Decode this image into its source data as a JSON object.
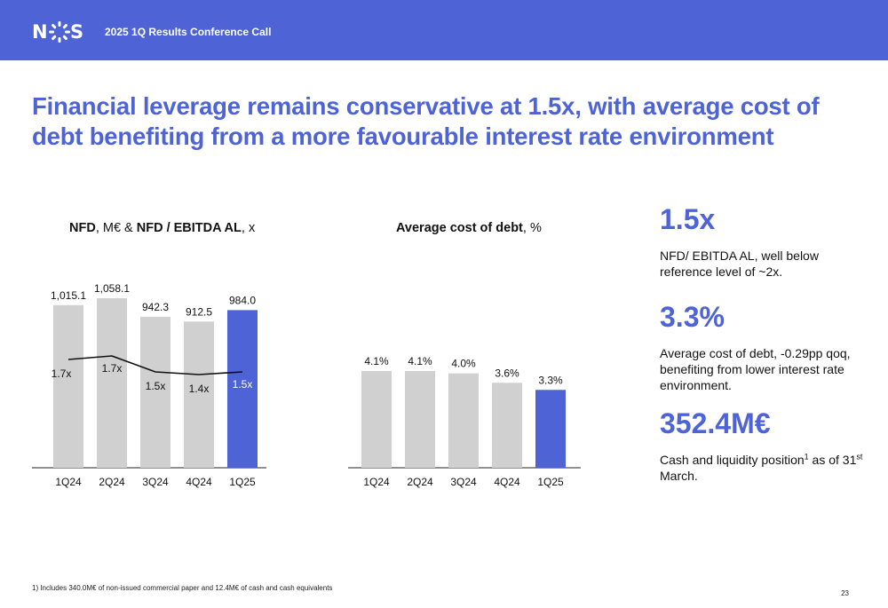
{
  "header": {
    "logo_left": "N",
    "logo_right": "S",
    "deck_title": "2025 1Q Results Conference Call"
  },
  "headline": "Financial leverage remains conservative at 1.5x, with average cost of debt benefiting from a more favourable interest rate environment",
  "colors": {
    "brand": "#4d63d6",
    "bar_gray": "#d0d0d0",
    "line": "#111111"
  },
  "chart_data": [
    {
      "type": "bar",
      "title_bold_1": "NFD",
      "title_unit_1": ", M€ & ",
      "title_bold_2": "NFD / EBITDA AL",
      "title_unit_2": ", x",
      "categories": [
        "1Q24",
        "2Q24",
        "3Q24",
        "4Q24",
        "1Q25"
      ],
      "series": [
        {
          "values": [
            1015.1,
            1058.1,
            942.3,
            912.5,
            984.0
          ],
          "labels": [
            "1,015.1",
            "1,058.1",
            "942.3",
            "912.5",
            "984.0"
          ]
        },
        {
          "type": "line",
          "values": [
            1.7,
            1.7,
            1.5,
            1.4,
            1.5
          ],
          "labels": [
            "1.7x",
            "1.7x",
            "1.5x",
            "1.4x",
            "1.5x"
          ]
        }
      ],
      "highlight_index": 4
    },
    {
      "type": "bar",
      "title_bold": "Average cost of debt",
      "title_unit": ", %",
      "categories": [
        "1Q24",
        "2Q24",
        "3Q24",
        "4Q24",
        "1Q25"
      ],
      "values": [
        4.1,
        4.1,
        4.0,
        3.6,
        3.3
      ],
      "labels": [
        "4.1%",
        "4.1%",
        "4.0%",
        "3.6%",
        "3.3%"
      ],
      "highlight_index": 4
    }
  ],
  "kpis": [
    {
      "value": "1.5x",
      "desc": "NFD/ EBITDA AL, well below reference level of ~2x."
    },
    {
      "value": "3.3%",
      "desc": "Average cost of debt, -0.29pp qoq, benefiting from lower interest rate environment."
    },
    {
      "value": "352.4M€",
      "desc_before": "Cash and liquidity position",
      "footnote_ref": "1",
      "desc_mid": " as of 31",
      "desc_sup": "st",
      "desc_after": " March."
    }
  ],
  "footnote": "1) Includes 340.0M€ of non-issued commercial paper and 12.4M€ of cash and cash equivalents",
  "page_number": "23"
}
